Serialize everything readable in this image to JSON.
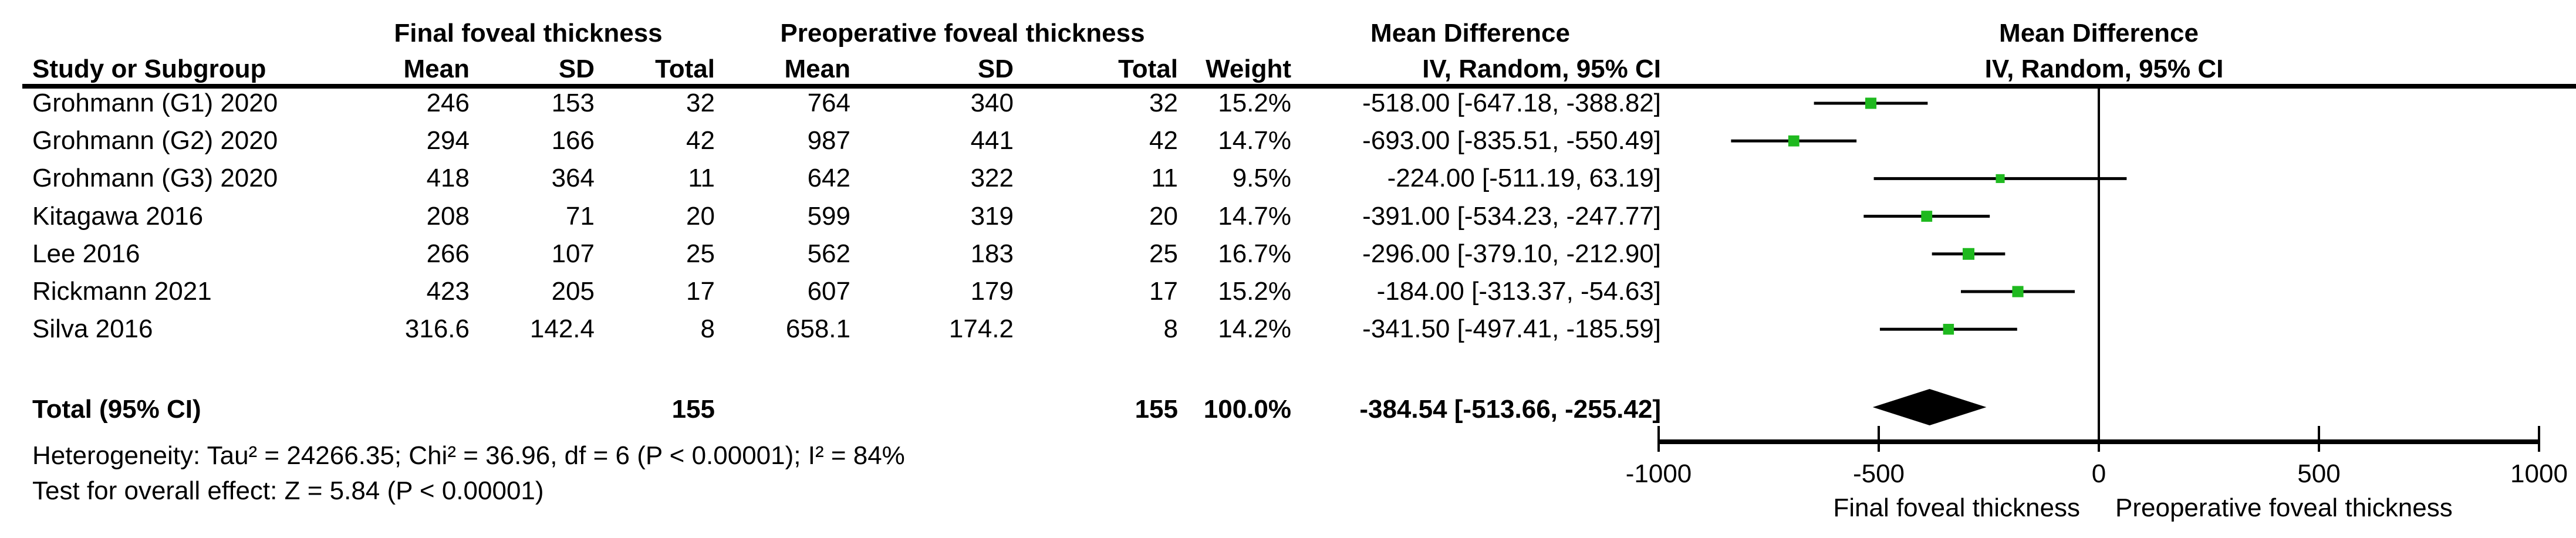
{
  "chart_data": {
    "type": "forest",
    "effect_label": "Mean Difference",
    "effect_model": "IV, Random, 95% CI",
    "group1_label": "Final foveal thickness",
    "group2_label": "Preoperative foveal thickness",
    "table_headers": {
      "study": "Study or Subgroup",
      "mean": "Mean",
      "sd": "SD",
      "total": "Total",
      "weight": "Weight",
      "ci": "IV, Random, 95% CI"
    },
    "studies": [
      {
        "name": "Grohmann (G1) 2020",
        "mean1": "246",
        "sd1": "153",
        "n1": "32",
        "mean2": "764",
        "sd2": "340",
        "n2": "32",
        "weight": "15.2%",
        "weight_pct": 15.2,
        "md": -518.0,
        "ci_low": -647.18,
        "ci_high": -388.82,
        "ci_text": "-518.00 [-647.18, -388.82]"
      },
      {
        "name": "Grohmann (G2) 2020",
        "mean1": "294",
        "sd1": "166",
        "n1": "42",
        "mean2": "987",
        "sd2": "441",
        "n2": "42",
        "weight": "14.7%",
        "weight_pct": 14.7,
        "md": -693.0,
        "ci_low": -835.51,
        "ci_high": -550.49,
        "ci_text": "-693.00 [-835.51, -550.49]"
      },
      {
        "name": "Grohmann (G3) 2020",
        "mean1": "418",
        "sd1": "364",
        "n1": "11",
        "mean2": "642",
        "sd2": "322",
        "n2": "11",
        "weight": "9.5%",
        "weight_pct": 9.5,
        "md": -224.0,
        "ci_low": -511.19,
        "ci_high": 63.19,
        "ci_text": "-224.00 [-511.19, 63.19]"
      },
      {
        "name": "Kitagawa 2016",
        "mean1": "208",
        "sd1": "71",
        "n1": "20",
        "mean2": "599",
        "sd2": "319",
        "n2": "20",
        "weight": "14.7%",
        "weight_pct": 14.7,
        "md": -391.0,
        "ci_low": -534.23,
        "ci_high": -247.77,
        "ci_text": "-391.00 [-534.23, -247.77]"
      },
      {
        "name": "Lee 2016",
        "mean1": "266",
        "sd1": "107",
        "n1": "25",
        "mean2": "562",
        "sd2": "183",
        "n2": "25",
        "weight": "16.7%",
        "weight_pct": 16.7,
        "md": -296.0,
        "ci_low": -379.1,
        "ci_high": -212.9,
        "ci_text": "-296.00 [-379.10, -212.90]"
      },
      {
        "name": "Rickmann 2021",
        "mean1": "423",
        "sd1": "205",
        "n1": "17",
        "mean2": "607",
        "sd2": "179",
        "n2": "17",
        "weight": "15.2%",
        "weight_pct": 15.2,
        "md": -184.0,
        "ci_low": -313.37,
        "ci_high": -54.63,
        "ci_text": "-184.00 [-313.37, -54.63]"
      },
      {
        "name": "Silva 2016",
        "mean1": "316.6",
        "sd1": "142.4",
        "n1": "8",
        "mean2": "658.1",
        "sd2": "174.2",
        "n2": "8",
        "weight": "14.2%",
        "weight_pct": 14.2,
        "md": -341.5,
        "ci_low": -497.41,
        "ci_high": -185.59,
        "ci_text": "-341.50 [-497.41, -185.59]"
      }
    ],
    "total": {
      "label": "Total (95% CI)",
      "n1": "155",
      "n2": "155",
      "weight": "100.0%",
      "md": -384.54,
      "ci_low": -513.66,
      "ci_high": -255.42,
      "ci_text": "-384.54 [-513.66, -255.42]"
    },
    "heterogeneity": "Heterogeneity: Tau² = 24266.35; Chi² = 36.96, df = 6 (P < 0.00001); I² = 84%",
    "overall_effect": "Test for overall effect: Z = 5.84 (P < 0.00001)",
    "axis": {
      "min": -1000,
      "max": 1000,
      "ticks": [
        -1000,
        -500,
        0,
        500,
        1000
      ],
      "tick_labels": [
        "-1000",
        "-500",
        "0",
        "500",
        "1000"
      ],
      "caption_left": "Final foveal thickness",
      "caption_right": "Preoperative foveal thickness"
    },
    "colors": {
      "marker_green": "#1fb91f",
      "line_black": "#000000"
    }
  }
}
